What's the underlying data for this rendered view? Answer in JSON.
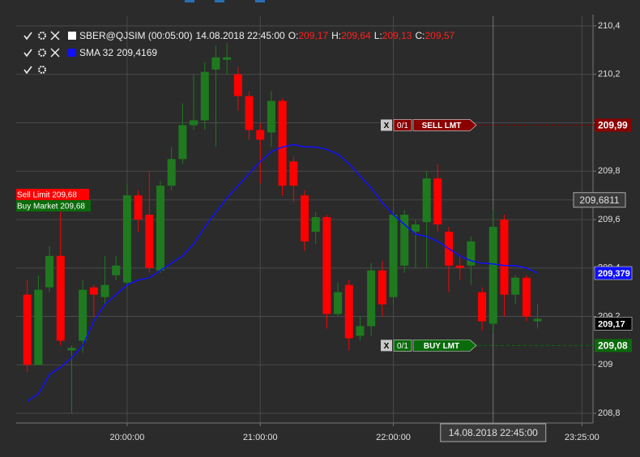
{
  "chart_data": {
    "type": "candlestick",
    "legend": {
      "instrument": "SBER@QJSIM (00:05:00)",
      "time": "14.08.2018 22:45:00",
      "ohlc_keys": [
        "O:",
        "H:",
        "L:",
        "C:"
      ],
      "ohlc_values": [
        {
          "value": 209.17,
          "label": "209,17"
        },
        {
          "value": 209.64,
          "label": "209,64"
        },
        {
          "value": 209.13,
          "label": "209,13"
        },
        {
          "value": 209.57,
          "label": "209,57"
        }
      ]
    },
    "x": [
      "19:15:00",
      "19:20:00",
      "19:25:00",
      "19:30:00",
      "19:35:00",
      "19:40:00",
      "19:45:00",
      "19:50:00",
      "19:55:00",
      "20:00:00",
      "20:05:00",
      "20:10:00",
      "20:15:00",
      "20:20:00",
      "20:25:00",
      "20:30:00",
      "20:35:00",
      "20:40:00",
      "20:45:00",
      "20:50:00",
      "20:55:00",
      "21:00:00",
      "21:05:00",
      "21:10:00",
      "21:15:00",
      "21:20:00",
      "21:25:00",
      "21:30:00",
      "21:35:00",
      "21:40:00",
      "21:45:00",
      "21:50:00",
      "21:55:00",
      "22:00:00",
      "22:05:00",
      "22:10:00",
      "22:15:00",
      "22:20:00",
      "22:25:00",
      "22:30:00",
      "22:35:00",
      "22:40:00",
      "22:45:00",
      "22:50:00",
      "22:55:00",
      "23:00:00",
      "23:05:00"
    ],
    "open": [
      209.29,
      209.0,
      209.32,
      209.45,
      209.06,
      209.1,
      209.32,
      209.28,
      209.37,
      209.34,
      209.7,
      209.62,
      209.39,
      209.74,
      209.85,
      209.99,
      210.01,
      210.22,
      210.26,
      210.2,
      210.11,
      209.97,
      209.96,
      210.09,
      209.84,
      209.7,
      209.55,
      209.61,
      209.21,
      209.33,
      209.12,
      209.16,
      209.39,
      209.28,
      209.41,
      209.55,
      209.59,
      209.77,
      209.55,
      209.41,
      209.41,
      209.3,
      209.17,
      209.6,
      209.29,
      209.36,
      209.18
    ],
    "high": [
      209.35,
      209.37,
      209.49,
      209.65,
      209.08,
      209.35,
      209.33,
      209.45,
      209.45,
      209.75,
      209.72,
      209.8,
      209.76,
      209.9,
      210.08,
      210.2,
      210.25,
      210.32,
      210.33,
      210.23,
      210.13,
      210.0,
      210.13,
      210.1,
      209.86,
      209.72,
      209.63,
      209.62,
      209.34,
      209.35,
      209.2,
      209.42,
      209.43,
      209.64,
      209.64,
      209.6,
      209.8,
      209.83,
      209.57,
      209.45,
      209.53,
      209.32,
      209.64,
      209.62,
      209.37,
      209.37,
      209.25
    ],
    "low": [
      208.97,
      209.0,
      209.3,
      209.08,
      208.8,
      209.05,
      209.2,
      209.25,
      209.35,
      209.33,
      209.55,
      209.38,
      209.38,
      209.72,
      209.83,
      209.97,
      209.97,
      209.9,
      210.2,
      210.05,
      209.93,
      209.75,
      209.9,
      209.7,
      209.67,
      209.47,
      209.5,
      209.15,
      209.2,
      209.06,
      209.1,
      209.12,
      209.2,
      209.25,
      209.38,
      209.4,
      209.4,
      209.55,
      209.3,
      209.35,
      209.33,
      209.14,
      209.13,
      209.2,
      209.25,
      209.18,
      209.15
    ],
    "close": [
      209.0,
      209.31,
      209.45,
      209.1,
      209.07,
      209.31,
      209.29,
      209.33,
      209.41,
      209.7,
      209.6,
      209.4,
      209.74,
      209.85,
      209.99,
      210.01,
      210.21,
      210.27,
      210.27,
      210.11,
      209.97,
      209.93,
      210.09,
      209.74,
      209.74,
      209.51,
      209.61,
      209.21,
      209.3,
      209.11,
      209.16,
      209.39,
      209.25,
      209.62,
      209.62,
      209.58,
      209.77,
      209.58,
      209.41,
      209.4,
      209.51,
      209.18,
      209.57,
      209.29,
      209.36,
      209.2,
      209.19
    ],
    "up_color": "#1f7a1f",
    "down_color": "#ff0000",
    "sma": {
      "name": "SMA 32",
      "color": "#1010ff",
      "legend_value": {
        "value": 209.4169,
        "label": "209,4169"
      },
      "values": [
        208.85,
        208.88,
        208.96,
        208.99,
        209.03,
        209.08,
        209.18,
        209.25,
        209.29,
        209.33,
        209.35,
        209.36,
        209.39,
        209.42,
        209.45,
        209.5,
        209.57,
        209.63,
        209.69,
        209.74,
        209.79,
        209.84,
        209.88,
        209.9,
        209.91,
        209.9,
        209.9,
        209.89,
        209.87,
        209.83,
        209.78,
        209.73,
        209.67,
        209.62,
        209.58,
        209.54,
        209.53,
        209.51,
        209.48,
        209.45,
        209.43,
        209.42,
        209.4169,
        209.41,
        209.41,
        209.4,
        209.379
      ]
    },
    "xlim": [
      "19:10:00",
      "23:30:00"
    ],
    "xticks": [
      "20:00:00",
      "21:00:00",
      "22:00:00",
      "23:25:00"
    ],
    "ylim": [
      208.76,
      210.44
    ],
    "yticks": [
      {
        "value": 210.4,
        "label": "210,4"
      },
      {
        "value": 210.2,
        "label": "210,2"
      },
      210,
      {
        "value": 209.8,
        "label": "209,8"
      },
      {
        "value": 209.6,
        "label": "209,6"
      },
      {
        "value": 209.4,
        "label": "209,4"
      },
      {
        "value": 209.2,
        "label": "209,2"
      },
      209,
      {
        "value": 208.8,
        "label": "208,8"
      }
    ],
    "grid": true,
    "crosshair": {
      "time": "22:45:00",
      "label": "14.08.2018 22:45:00",
      "price": {
        "value": 209.6811,
        "label": "209,6811"
      }
    },
    "price_tags": [
      {
        "value": 209.379,
        "label": "209,379",
        "color": "#1010ff"
      },
      {
        "value": 209.17,
        "label": "209,17",
        "color": "#000000"
      }
    ],
    "orders": [
      {
        "cancel": "X",
        "filled": "0/1",
        "label": "SELL LMT",
        "price": {
          "value": 209.99,
          "label": "209,99"
        },
        "color": "#8b0000"
      },
      {
        "cancel": "X",
        "filled": "0/1",
        "label": "BUY LMT",
        "price": {
          "value": 209.08,
          "label": "209,08"
        },
        "color": "#0b6b0b"
      }
    ],
    "position_labels": [
      {
        "text": "Sell Limit 209,68",
        "color": "#ff0000"
      },
      {
        "text": "Buy Market 209,68",
        "color": "#0b6b0b"
      }
    ]
  }
}
